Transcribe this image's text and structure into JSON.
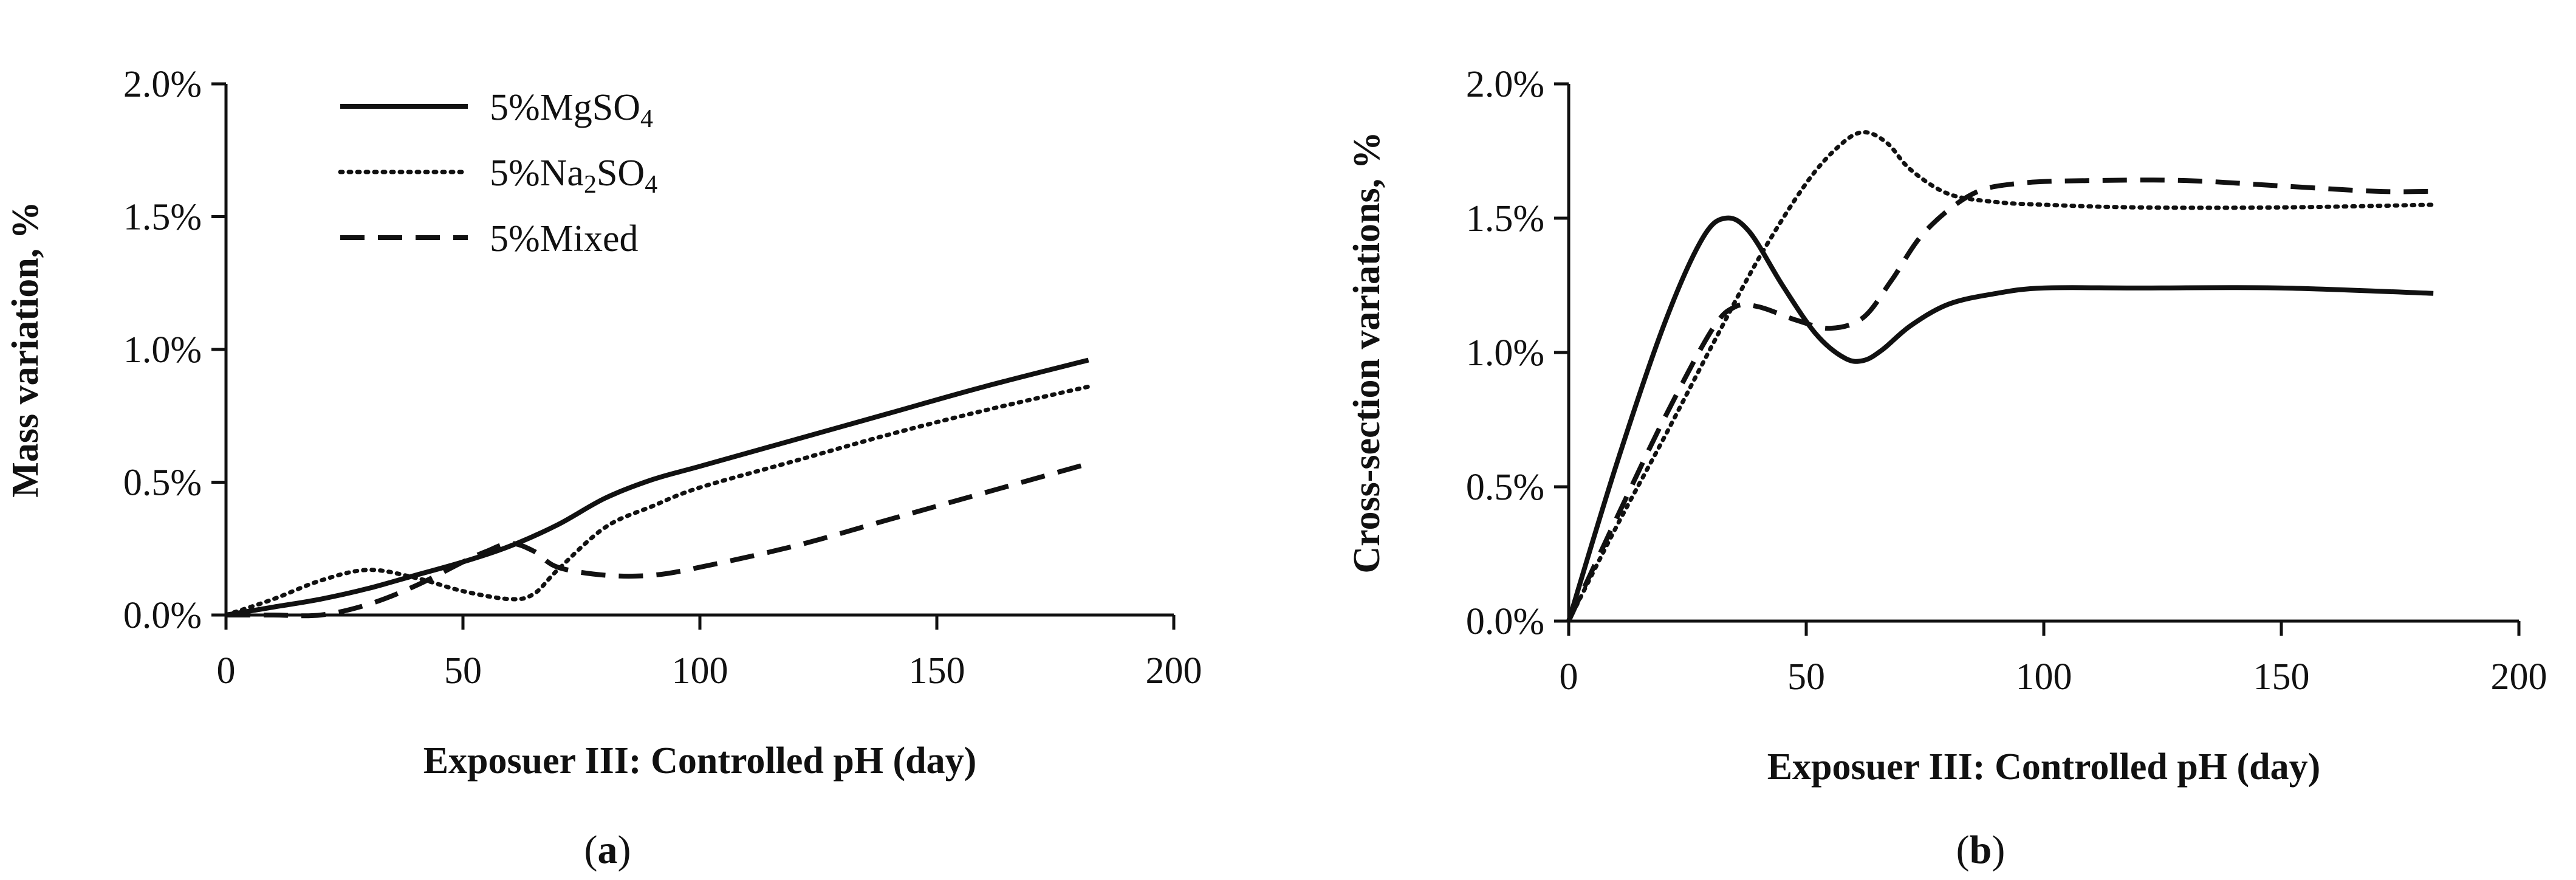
{
  "chart_data": [
    {
      "type": "line",
      "panel_label": "a",
      "title": "",
      "xlabel": "Exposuer III: Controlled pH (day)",
      "ylabel": "Mass variation, %",
      "xlim": [
        0,
        200
      ],
      "ylim": [
        0.0,
        0.02
      ],
      "x_ticks": [
        "0",
        "50",
        "100",
        "150",
        "200"
      ],
      "x_tick_values": [
        0,
        50,
        100,
        150,
        200
      ],
      "y_ticks": [
        "0.0%",
        "0.5%",
        "1.0%",
        "1.5%",
        "2.0%"
      ],
      "y_tick_values": [
        0.0,
        0.005,
        0.01,
        0.015,
        0.02
      ],
      "legend_placement": "top-left",
      "series": [
        {
          "name": "5%MgSO4",
          "legend_main": "5%MgSO",
          "legend_sub": "4",
          "legend_tail": "",
          "style": "solid",
          "x": [
            0,
            10,
            20,
            30,
            40,
            50,
            60,
            70,
            80,
            90,
            100,
            120,
            140,
            160,
            182
          ],
          "y": [
            0.0,
            0.0003,
            0.0006,
            0.001,
            0.0015,
            0.002,
            0.0026,
            0.0034,
            0.0044,
            0.0051,
            0.0056,
            0.0066,
            0.0076,
            0.0086,
            0.0096
          ]
        },
        {
          "name": "5%Na2SO4",
          "legend_main": "5%Na",
          "legend_sub": "2",
          "legend_tail": "SO4",
          "style": "dotted",
          "x": [
            0,
            10,
            20,
            30,
            40,
            50,
            60,
            65,
            70,
            80,
            90,
            100,
            120,
            140,
            160,
            182
          ],
          "y": [
            0.0,
            0.0006,
            0.0013,
            0.0017,
            0.0014,
            0.0009,
            0.0006,
            0.0008,
            0.0017,
            0.0033,
            0.0041,
            0.0048,
            0.0058,
            0.0068,
            0.0077,
            0.0086
          ]
        },
        {
          "name": "5%Mixed",
          "legend_main": "5%Mixed",
          "legend_sub": "",
          "legend_tail": "",
          "style": "dashed",
          "x": [
            0,
            10,
            20,
            30,
            40,
            50,
            55,
            60,
            65,
            70,
            80,
            90,
            100,
            120,
            140,
            160,
            182
          ],
          "y": [
            0.0,
            0.0,
            0.0,
            0.0004,
            0.0011,
            0.002,
            0.0024,
            0.0027,
            0.0024,
            0.0018,
            0.0015,
            0.0015,
            0.0018,
            0.0026,
            0.0036,
            0.0046,
            0.0057
          ]
        }
      ]
    },
    {
      "type": "line",
      "panel_label": "b",
      "title": "",
      "xlabel": "Exposuer III: Controlled pH (day)",
      "ylabel": "Cross-section variations, %",
      "xlim": [
        0,
        200
      ],
      "ylim": [
        0.0,
        0.02
      ],
      "x_ticks": [
        "0",
        "50",
        "100",
        "150",
        "200"
      ],
      "x_tick_values": [
        0,
        50,
        100,
        150,
        200
      ],
      "y_ticks": [
        "0.0%",
        "0.5%",
        "1.0%",
        "1.5%",
        "2.0%"
      ],
      "y_tick_values": [
        0.0,
        0.005,
        0.01,
        0.015,
        0.02
      ],
      "legend_placement": "none",
      "series": [
        {
          "name": "5%MgSO4",
          "style": "solid",
          "x": [
            0,
            10,
            20,
            28,
            33,
            38,
            45,
            52,
            58,
            62,
            66,
            72,
            80,
            90,
            100,
            120,
            150,
            182
          ],
          "y": [
            0.0,
            0.0058,
            0.011,
            0.0142,
            0.015,
            0.0145,
            0.0125,
            0.0107,
            0.0098,
            0.0097,
            0.0101,
            0.011,
            0.0118,
            0.0122,
            0.0124,
            0.0124,
            0.0124,
            0.0122
          ]
        },
        {
          "name": "5%Na2SO4",
          "style": "dotted",
          "x": [
            0,
            10,
            20,
            30,
            40,
            50,
            57,
            62,
            67,
            72,
            80,
            90,
            100,
            120,
            150,
            182
          ],
          "y": [
            0.0,
            0.0035,
            0.0068,
            0.0102,
            0.0135,
            0.0163,
            0.0177,
            0.0182,
            0.0178,
            0.0168,
            0.0159,
            0.0156,
            0.0155,
            0.0154,
            0.0154,
            0.0155
          ]
        },
        {
          "name": "5%Mixed",
          "style": "dashed",
          "x": [
            0,
            10,
            20,
            30,
            35,
            40,
            48,
            55,
            62,
            68,
            75,
            85,
            95,
            110,
            130,
            150,
            170,
            182
          ],
          "y": [
            0.0,
            0.0038,
            0.0075,
            0.0108,
            0.0117,
            0.0117,
            0.0112,
            0.0109,
            0.0113,
            0.0127,
            0.0145,
            0.0159,
            0.0163,
            0.0164,
            0.0164,
            0.0162,
            0.016,
            0.016
          ]
        }
      ]
    }
  ]
}
